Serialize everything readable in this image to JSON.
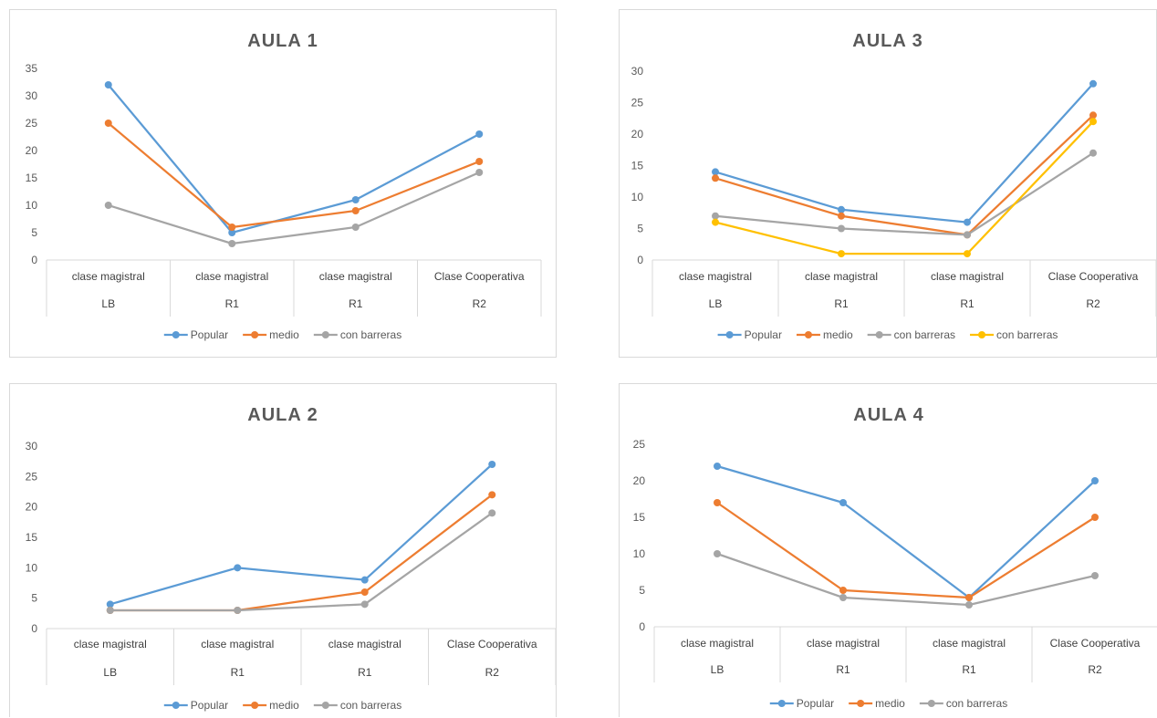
{
  "chart_data": [
    {
      "panel": "p1",
      "type": "line",
      "title": "AULA 1",
      "categories": [
        [
          "clase magistral",
          "LB"
        ],
        [
          "clase magistral",
          "R1"
        ],
        [
          "clase magistral",
          "R1"
        ],
        [
          "Clase Cooperativa",
          "R2"
        ]
      ],
      "ylim": [
        0,
        35
      ],
      "yticks": [
        0,
        5,
        10,
        15,
        20,
        25,
        30,
        35
      ],
      "grid": false,
      "legend": "bottom",
      "series": [
        {
          "name": "Popular",
          "color": "#5b9bd5",
          "values": [
            32,
            5,
            11,
            23
          ]
        },
        {
          "name": "medio",
          "color": "#ed7d31",
          "values": [
            25,
            6,
            9,
            18
          ]
        },
        {
          "name": "con barreras",
          "color": "#a5a5a5",
          "values": [
            10,
            3,
            6,
            16
          ]
        }
      ]
    },
    {
      "panel": "p3",
      "type": "line",
      "title": "AULA 3",
      "categories": [
        [
          "clase magistral",
          "LB"
        ],
        [
          "clase magistral",
          "R1"
        ],
        [
          "clase magistral",
          "R1"
        ],
        [
          "Clase Cooperativa",
          "R2"
        ]
      ],
      "ylim": [
        0,
        30
      ],
      "yticks": [
        0,
        5,
        10,
        15,
        20,
        25,
        30
      ],
      "grid": false,
      "legend": "bottom",
      "series": [
        {
          "name": "Popular",
          "color": "#5b9bd5",
          "values": [
            14,
            8,
            6,
            28
          ]
        },
        {
          "name": "medio",
          "color": "#ed7d31",
          "values": [
            13,
            7,
            4,
            23
          ]
        },
        {
          "name": "con barreras",
          "color": "#a5a5a5",
          "values": [
            7,
            5,
            4,
            17
          ]
        },
        {
          "name": "con barreras",
          "color": "#ffc000",
          "values": [
            6,
            1,
            1,
            22
          ]
        }
      ]
    },
    {
      "panel": "p2",
      "type": "line",
      "title": "AULA 2",
      "categories": [
        [
          "clase magistral",
          "LB"
        ],
        [
          "clase magistral",
          "R1"
        ],
        [
          "clase magistral",
          "R1"
        ],
        [
          "Clase Cooperativa",
          "R2"
        ]
      ],
      "ylim": [
        0,
        30
      ],
      "yticks": [
        0,
        5,
        10,
        15,
        20,
        25,
        30
      ],
      "grid": false,
      "legend": "bottom",
      "series": [
        {
          "name": "Popular",
          "color": "#5b9bd5",
          "values": [
            4,
            10,
            8,
            27
          ]
        },
        {
          "name": "medio",
          "color": "#ed7d31",
          "values": [
            3,
            3,
            6,
            22
          ]
        },
        {
          "name": "con barreras",
          "color": "#a5a5a5",
          "values": [
            3,
            3,
            4,
            19
          ]
        }
      ]
    },
    {
      "panel": "p4",
      "type": "line",
      "title": "AULA 4",
      "categories": [
        [
          "clase magistral",
          "LB"
        ],
        [
          "clase magistral",
          "R1"
        ],
        [
          "clase magistral",
          "R1"
        ],
        [
          "Clase Cooperativa",
          "R2"
        ]
      ],
      "ylim": [
        0,
        25
      ],
      "yticks": [
        0,
        5,
        10,
        15,
        20,
        25
      ],
      "grid": false,
      "legend": "bottom",
      "series": [
        {
          "name": "Popular",
          "color": "#5b9bd5",
          "values": [
            22,
            17,
            4,
            20
          ]
        },
        {
          "name": "medio",
          "color": "#ed7d31",
          "values": [
            17,
            5,
            4,
            15
          ]
        },
        {
          "name": "con barreras",
          "color": "#a5a5a5",
          "values": [
            10,
            4,
            3,
            7
          ]
        }
      ]
    }
  ]
}
